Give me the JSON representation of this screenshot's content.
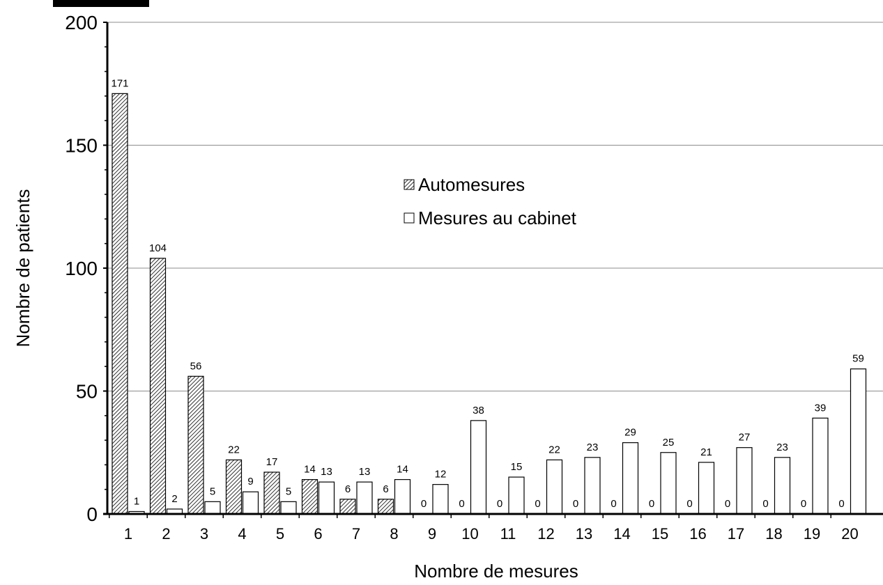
{
  "chart_data": {
    "type": "bar",
    "xlabel": "Nombre de mesures",
    "ylabel": "Nombre de patients",
    "categories": [
      "1",
      "2",
      "3",
      "4",
      "5",
      "6",
      "7",
      "8",
      "9",
      "10",
      "11",
      "12",
      "13",
      "14",
      "15",
      "16",
      "17",
      "18",
      "19",
      "20"
    ],
    "series": [
      {
        "name": "Automesures",
        "pattern": "diagonal-hatch",
        "values": [
          171,
          104,
          56,
          22,
          17,
          14,
          6,
          6,
          0,
          0,
          0,
          0,
          0,
          0,
          0,
          0,
          0,
          0,
          0,
          0
        ]
      },
      {
        "name": "Mesures au cabinet",
        "pattern": "white",
        "values": [
          1,
          2,
          5,
          9,
          5,
          13,
          13,
          14,
          12,
          38,
          15,
          22,
          23,
          29,
          25,
          21,
          27,
          23,
          39,
          59
        ]
      }
    ],
    "ylim": [
      0,
      200
    ],
    "yticks": [
      0,
      50,
      100,
      150,
      200
    ],
    "grid": true,
    "legend_position": "center"
  }
}
